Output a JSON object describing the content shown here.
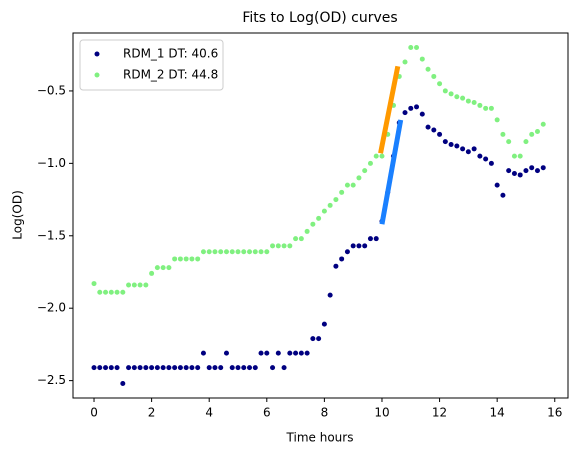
{
  "chart_data": {
    "type": "scatter",
    "title": "Fits to Log(OD) curves",
    "x_label": "Time hours",
    "y_label": "Log(OD)",
    "x": [
      0,
      0.2,
      0.4,
      0.6,
      0.8,
      1.0,
      1.2,
      1.4,
      1.6,
      1.8,
      2.0,
      2.2,
      2.4,
      2.6,
      2.8,
      3.0,
      3.2,
      3.4,
      3.6,
      3.8,
      4.0,
      4.2,
      4.4,
      4.6,
      4.8,
      5.0,
      5.2,
      5.4,
      5.6,
      5.8,
      6.0,
      6.2,
      6.4,
      6.6,
      6.8,
      7.0,
      7.2,
      7.4,
      7.6,
      7.8,
      8.0,
      8.2,
      8.4,
      8.6,
      8.8,
      9.0,
      9.2,
      9.4,
      9.6,
      9.8,
      10.0,
      10.2,
      10.4,
      10.6,
      10.8,
      11.0,
      11.2,
      11.4,
      11.6,
      11.8,
      12.0,
      12.2,
      12.4,
      12.6,
      12.8,
      13.0,
      13.2,
      13.4,
      13.6,
      13.8,
      14.0,
      14.2,
      14.4,
      14.6,
      14.8,
      15.0,
      15.2,
      15.4,
      15.6
    ],
    "series": [
      {
        "name": "RDM_1 DT: 40.6",
        "color": "#000080",
        "values": [
          -2.41,
          -2.41,
          -2.41,
          -2.41,
          -2.41,
          -2.52,
          -2.41,
          -2.41,
          -2.41,
          -2.41,
          -2.41,
          -2.41,
          -2.41,
          -2.41,
          -2.41,
          -2.41,
          -2.41,
          -2.41,
          -2.41,
          -2.31,
          -2.41,
          -2.41,
          -2.41,
          -2.31,
          -2.41,
          -2.41,
          -2.41,
          -2.41,
          -2.41,
          -2.31,
          -2.31,
          -2.41,
          -2.31,
          -2.41,
          -2.31,
          -2.31,
          -2.31,
          -2.31,
          -2.21,
          -2.21,
          -2.11,
          -1.91,
          -1.71,
          -1.66,
          -1.61,
          -1.57,
          -1.57,
          -1.57,
          -1.52,
          -1.52,
          -1.4,
          -1.2,
          -0.95,
          -0.72,
          -0.65,
          -0.62,
          -0.61,
          -0.66,
          -0.75,
          -0.77,
          -0.8,
          -0.85,
          -0.87,
          -0.88,
          -0.9,
          -0.92,
          -0.9,
          -0.95,
          -0.97,
          -1.0,
          -1.15,
          -1.22,
          -1.05,
          -1.07,
          -1.08,
          -1.05,
          -1.03,
          -1.05,
          -1.03
        ]
      },
      {
        "name": "RDM_2 DT: 44.8",
        "color": "#80f080",
        "values": [
          -1.83,
          -1.89,
          -1.89,
          -1.89,
          -1.89,
          -1.89,
          -1.84,
          -1.84,
          -1.84,
          -1.84,
          -1.76,
          -1.72,
          -1.72,
          -1.72,
          -1.66,
          -1.66,
          -1.66,
          -1.66,
          -1.66,
          -1.61,
          -1.61,
          -1.61,
          -1.61,
          -1.61,
          -1.61,
          -1.61,
          -1.61,
          -1.61,
          -1.61,
          -1.61,
          -1.61,
          -1.57,
          -1.57,
          -1.57,
          -1.57,
          -1.52,
          -1.52,
          -1.47,
          -1.42,
          -1.38,
          -1.33,
          -1.29,
          -1.25,
          -1.2,
          -1.15,
          -1.15,
          -1.1,
          -1.05,
          -1.0,
          -0.95,
          -0.95,
          -0.8,
          -0.6,
          -0.4,
          -0.3,
          -0.2,
          -0.2,
          -0.28,
          -0.35,
          -0.4,
          -0.45,
          -0.5,
          -0.52,
          -0.54,
          -0.55,
          -0.57,
          -0.58,
          -0.6,
          -0.62,
          -0.62,
          -0.7,
          -0.8,
          -0.85,
          -0.95,
          -0.95,
          -0.85,
          -0.8,
          -0.78,
          -0.73
        ]
      }
    ],
    "fit_lines": [
      {
        "color": "#ff9900",
        "x": [
          9.95,
          10.55
        ],
        "values": [
          -0.93,
          -0.33
        ]
      },
      {
        "color": "#1a80ff",
        "x": [
          10.0,
          10.65
        ],
        "values": [
          -1.42,
          -0.7
        ]
      }
    ],
    "xlim": [
      -0.73,
      16.46
    ],
    "ylim": [
      -2.62,
      -0.1
    ],
    "xticks": [
      0,
      2,
      4,
      6,
      8,
      10,
      12,
      14,
      16
    ],
    "yticks": [
      {
        "value": -2.5,
        "label": "−2.5"
      },
      {
        "value": -2.0,
        "label": "−2.0"
      },
      {
        "value": -1.5,
        "label": "−1.5"
      },
      {
        "value": -1.0,
        "label": "−1.0"
      },
      {
        "value": -0.5,
        "label": "−0.5"
      }
    ],
    "legend": "upper left"
  }
}
